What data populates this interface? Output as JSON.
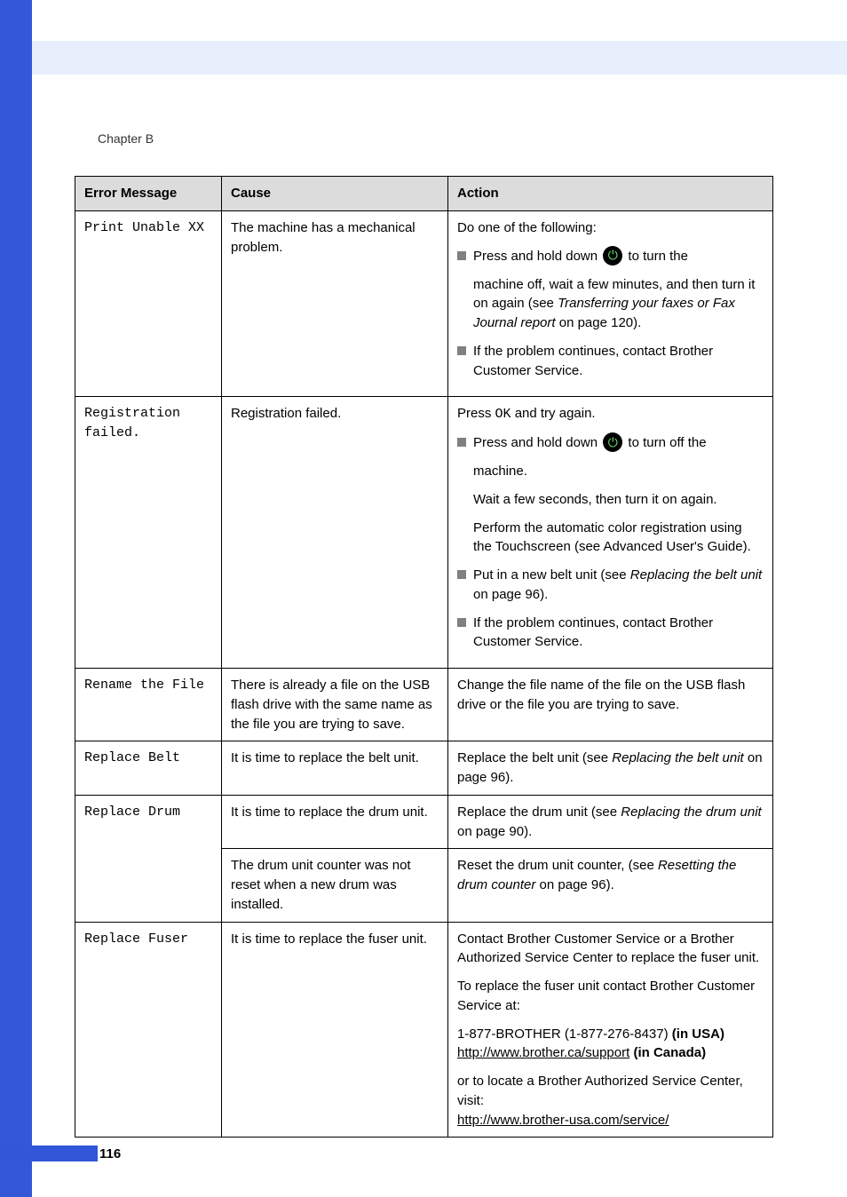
{
  "chapter_label": "Chapter B",
  "page_number": "116",
  "table": {
    "headers": {
      "c1": "Error Message",
      "c2": "Cause",
      "c3": "Action"
    },
    "row_print_unable": {
      "msg": "Print Unable XX",
      "cause": "The machine has a mechanical problem.",
      "action": {
        "intro": "Do one of the following:",
        "b1_a": "Press and hold down ",
        "b1_b": " to turn the",
        "b1_c": "machine off, wait a few minutes, and then turn it on again (see ",
        "b1_italic": "Transferring your faxes or Fax Journal report",
        "b1_d": " on page 120).",
        "b2": "If the problem continues, contact Brother Customer Service."
      }
    },
    "row_registration": {
      "msg": "Registration failed.",
      "cause": "Registration failed.",
      "action": {
        "intro_a": "Press ",
        "intro_ok": "OK",
        "intro_b": " and try again.",
        "b1_a": "Press and hold down ",
        "b1_b": " to turn off the",
        "b1_c": "machine.",
        "i1": "Wait a few seconds, then turn it on again.",
        "i2": "Perform the automatic color registration using the Touchscreen (see Advanced User's Guide).",
        "b2_a": "Put in a new belt unit (see ",
        "b2_italic": "Replacing the belt unit",
        "b2_b": " on page 96).",
        "b3": "If the problem continues, contact Brother Customer Service."
      }
    },
    "row_rename": {
      "msg": "Rename the File",
      "cause": "There is already a file on the USB flash drive with the same name as the file you are trying to save.",
      "action": "Change the file name of the file on the USB flash drive or the file you are trying to save."
    },
    "row_belt": {
      "msg": "Replace Belt",
      "cause": "It is time to replace the belt unit.",
      "action_a": "Replace the belt unit (see ",
      "action_italic": "Replacing the belt unit",
      "action_b": " on page 96)."
    },
    "row_drum": {
      "msg": "Replace Drum",
      "cause1": "It is time to replace the drum unit.",
      "action1_a": "Replace the drum unit (see ",
      "action1_italic": "Replacing the drum unit",
      "action1_b": " on page 90).",
      "cause2": "The drum unit counter was not reset when a new drum was installed.",
      "action2_a": "Reset the drum unit counter, (see ",
      "action2_italic": "Resetting the drum counter",
      "action2_b": " on page 96)."
    },
    "row_fuser": {
      "msg": "Replace Fuser",
      "cause": "It is time to replace the fuser unit.",
      "action": {
        "p1": "Contact Brother Customer Service or a Brother Authorized Service Center to replace the fuser unit.",
        "p2": "To replace the fuser unit contact Brother Customer Service at:",
        "p3_a": "1-877-BROTHER (1-877-276-8437) ",
        "p3_b": "(in USA)",
        "p3_link": "http://www.brother.ca/support",
        "p3_c": " (in Canada)",
        "p4": "or to locate a Brother Authorized Service Center, visit:",
        "p4_link": "http://www.brother-usa.com/service/"
      }
    }
  },
  "power_glyph": "⏻"
}
